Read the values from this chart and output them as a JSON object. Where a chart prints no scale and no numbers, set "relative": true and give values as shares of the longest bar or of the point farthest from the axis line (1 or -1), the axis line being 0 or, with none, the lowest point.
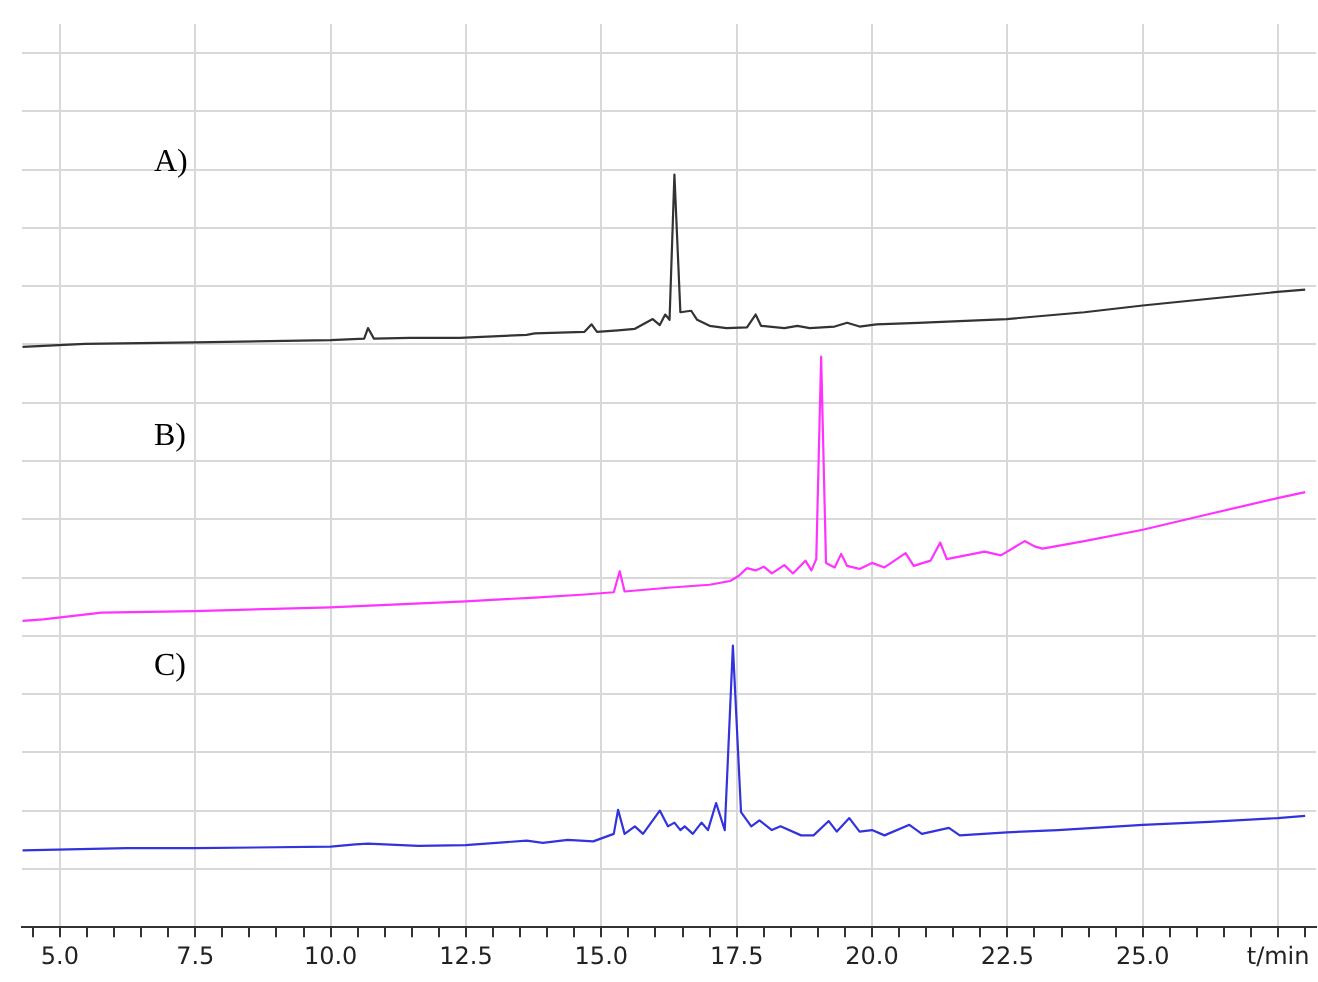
{
  "chart_data": {
    "type": "line",
    "relative": true,
    "grid": true,
    "marker": "none",
    "line_style": "solid",
    "xlim": [
      4.3,
      28.2
    ],
    "xticks": [
      {
        "value": 4.5,
        "label": null
      },
      {
        "value": 5,
        "label": "5.0"
      },
      {
        "value": 5.5,
        "label": null
      },
      {
        "value": 6,
        "label": null
      },
      {
        "value": 6.5,
        "label": null
      },
      {
        "value": 7,
        "label": null
      },
      {
        "value": 7.5,
        "label": "7.5"
      },
      {
        "value": 8,
        "label": null
      },
      {
        "value": 8.5,
        "label": null
      },
      {
        "value": 9,
        "label": null
      },
      {
        "value": 9.5,
        "label": null
      },
      {
        "value": 10,
        "label": "10.0"
      },
      {
        "value": 10.5,
        "label": null
      },
      {
        "value": 11,
        "label": null
      },
      {
        "value": 11.5,
        "label": null
      },
      {
        "value": 12,
        "label": null
      },
      {
        "value": 12.5,
        "label": "12.5"
      },
      {
        "value": 13,
        "label": null
      },
      {
        "value": 13.5,
        "label": null
      },
      {
        "value": 14,
        "label": null
      },
      {
        "value": 14.5,
        "label": null
      },
      {
        "value": 15,
        "label": "15.0"
      },
      {
        "value": 15.5,
        "label": null
      },
      {
        "value": 16,
        "label": null
      },
      {
        "value": 16.5,
        "label": null
      },
      {
        "value": 17,
        "label": null
      },
      {
        "value": 17.5,
        "label": "17.5"
      },
      {
        "value": 18,
        "label": null
      },
      {
        "value": 18.5,
        "label": null
      },
      {
        "value": 19,
        "label": null
      },
      {
        "value": 19.5,
        "label": null
      },
      {
        "value": 20,
        "label": "20.0"
      },
      {
        "value": 20.5,
        "label": null
      },
      {
        "value": 21,
        "label": null
      },
      {
        "value": 21.5,
        "label": null
      },
      {
        "value": 22,
        "label": null
      },
      {
        "value": 22.5,
        "label": "22.5"
      },
      {
        "value": 23,
        "label": null
      },
      {
        "value": 23.5,
        "label": null
      },
      {
        "value": 24,
        "label": null
      },
      {
        "value": 24.5,
        "label": null
      },
      {
        "value": 25,
        "label": "25.0"
      },
      {
        "value": 25.5,
        "label": null
      },
      {
        "value": 26,
        "label": null
      },
      {
        "value": 26.5,
        "label": null
      },
      {
        "value": 27,
        "label": null
      },
      {
        "value": 27.5,
        "label": "t/min"
      },
      {
        "value": 28,
        "label": null
      }
    ],
    "annotations": [
      "A)",
      "B)",
      "C)"
    ],
    "series": [
      {
        "color": "#333333",
        "x": [
          4.31,
          5.46,
          7.49,
          10.0,
          10.62,
          10.69,
          10.8,
          11.46,
          12.38,
          13.62,
          13.77,
          14.69,
          14.82,
          14.92,
          15.31,
          15.62,
          15.95,
          16.08,
          16.18,
          16.26,
          16.35,
          16.46,
          16.66,
          16.77,
          17.0,
          17.31,
          17.69,
          17.85,
          17.95,
          18.38,
          18.62,
          18.85,
          19.31,
          19.54,
          19.77,
          20.08,
          20.85,
          22.49,
          23.92,
          25.0,
          26.23,
          27.49,
          28.0
        ],
        "values": [
          0.771,
          0.775,
          0.777,
          0.78,
          0.782,
          0.796,
          0.782,
          0.783,
          0.783,
          0.787,
          0.789,
          0.791,
          0.801,
          0.791,
          0.793,
          0.795,
          0.808,
          0.8,
          0.814,
          0.807,
          1.0,
          0.817,
          0.819,
          0.807,
          0.799,
          0.796,
          0.797,
          0.814,
          0.799,
          0.796,
          0.799,
          0.796,
          0.798,
          0.803,
          0.798,
          0.801,
          0.803,
          0.808,
          0.817,
          0.826,
          0.835,
          0.844,
          0.847
        ]
      },
      {
        "color": "#ff33ff",
        "x": [
          4.31,
          4.69,
          5.77,
          7.49,
          10.0,
          12.49,
          13.77,
          14.69,
          15.23,
          15.34,
          15.43,
          16.23,
          17.0,
          17.38,
          17.54,
          17.69,
          17.85,
          18.0,
          18.15,
          18.38,
          18.54,
          18.77,
          18.88,
          18.97,
          19.06,
          19.15,
          19.31,
          19.43,
          19.54,
          19.77,
          20.0,
          20.23,
          20.62,
          20.77,
          21.08,
          21.26,
          21.38,
          22.08,
          22.38,
          22.82,
          23.0,
          23.15,
          23.92,
          25.0,
          26.23,
          27.49,
          28.0
        ],
        "values": [
          0.407,
          0.409,
          0.418,
          0.42,
          0.425,
          0.433,
          0.438,
          0.442,
          0.445,
          0.473,
          0.446,
          0.451,
          0.455,
          0.46,
          0.467,
          0.477,
          0.474,
          0.479,
          0.47,
          0.481,
          0.47,
          0.487,
          0.474,
          0.489,
          0.758,
          0.484,
          0.478,
          0.496,
          0.48,
          0.476,
          0.484,
          0.478,
          0.497,
          0.48,
          0.487,
          0.511,
          0.489,
          0.499,
          0.494,
          0.513,
          0.506,
          0.503,
          0.513,
          0.528,
          0.549,
          0.57,
          0.578
        ]
      },
      {
        "color": "#3333dd",
        "x": [
          4.31,
          6.23,
          7.49,
          10.0,
          10.46,
          10.69,
          11.62,
          12.49,
          13.62,
          13.92,
          14.38,
          14.85,
          15.23,
          15.31,
          15.43,
          15.62,
          15.77,
          16.08,
          16.23,
          16.35,
          16.46,
          16.54,
          16.69,
          16.85,
          16.97,
          17.12,
          17.28,
          17.43,
          17.58,
          17.77,
          17.92,
          18.15,
          18.31,
          18.69,
          18.92,
          19.2,
          19.35,
          19.58,
          19.77,
          20.0,
          20.23,
          20.69,
          20.92,
          21.42,
          21.62,
          22.49,
          23.43,
          25.0,
          26.23,
          27.49,
          28.0
        ],
        "values": [
          0.102,
          0.105,
          0.105,
          0.107,
          0.11,
          0.111,
          0.108,
          0.109,
          0.115,
          0.112,
          0.116,
          0.114,
          0.124,
          0.156,
          0.124,
          0.134,
          0.124,
          0.155,
          0.134,
          0.139,
          0.129,
          0.134,
          0.124,
          0.139,
          0.129,
          0.165,
          0.129,
          0.374,
          0.153,
          0.134,
          0.142,
          0.129,
          0.134,
          0.122,
          0.122,
          0.141,
          0.127,
          0.145,
          0.127,
          0.129,
          0.122,
          0.136,
          0.124,
          0.132,
          0.122,
          0.126,
          0.129,
          0.136,
          0.14,
          0.145,
          0.148
        ]
      }
    ]
  }
}
